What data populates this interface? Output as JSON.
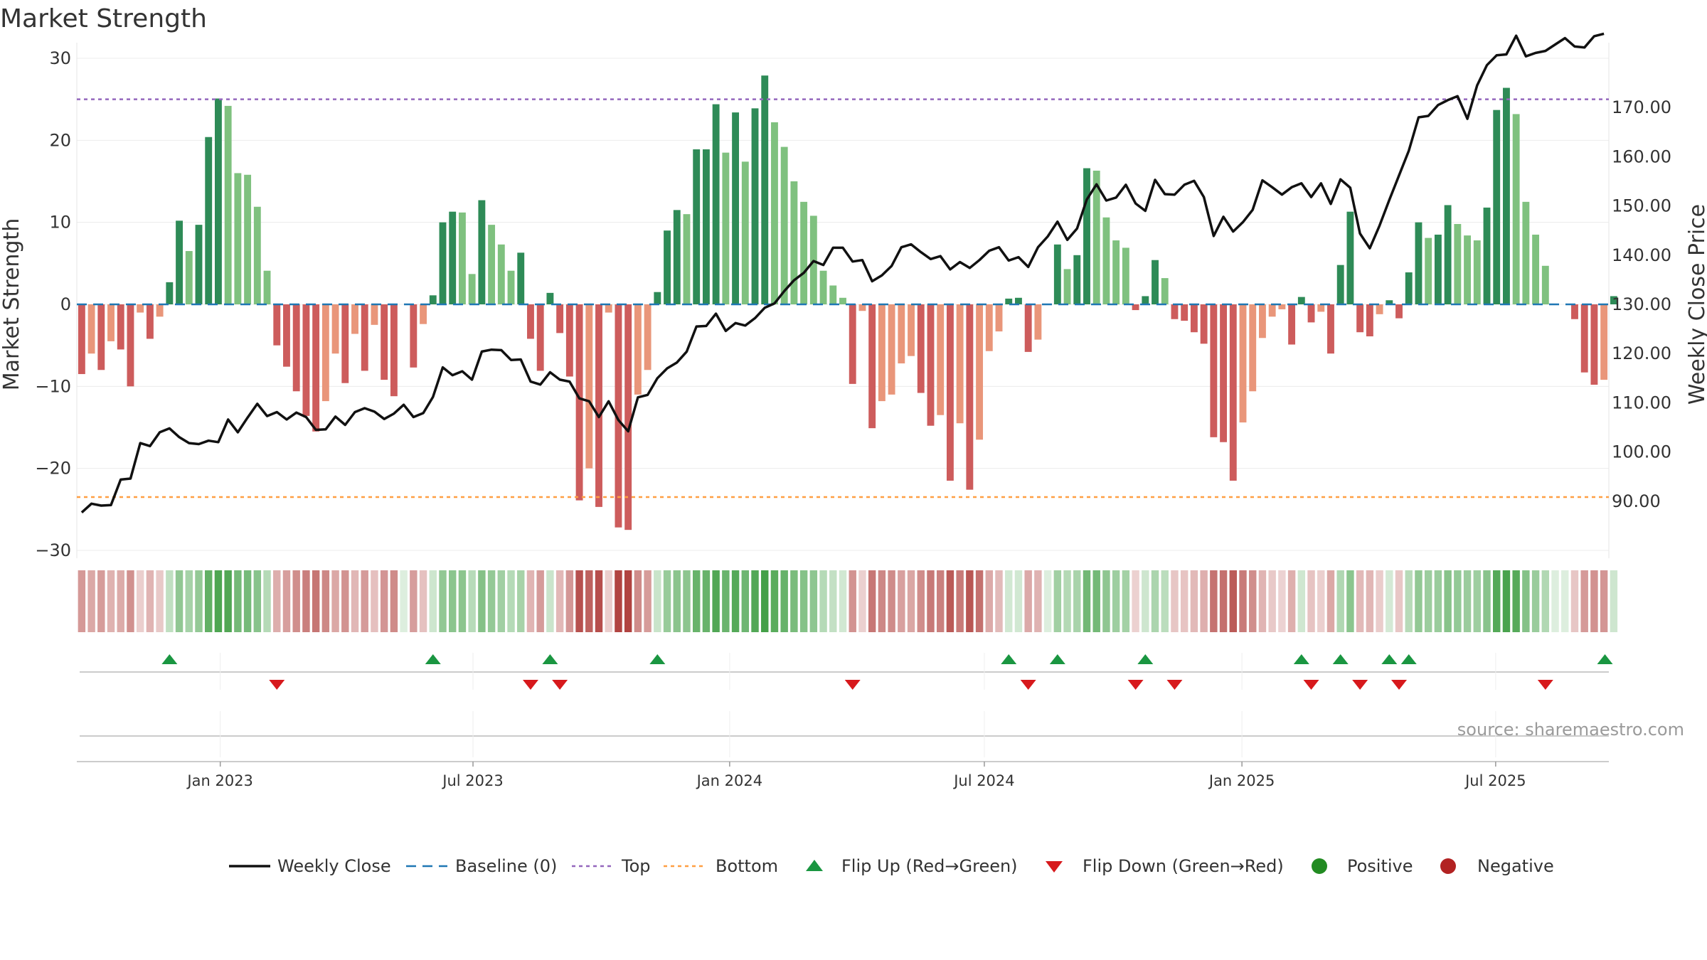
{
  "colors": {
    "pos_dark": "#2e8b57",
    "pos_light": "#7fc17f",
    "neg_dark": "#cd5c5c",
    "neg_light": "#e9967a",
    "price_line": "#111111",
    "baseline": "#1f77b4",
    "top_line": "#9467bd",
    "bottom_line": "#ff9f43",
    "flip_up": "#1a9641",
    "flip_down": "#d7191c",
    "positive_dot": "#228b22",
    "negative_dot": "#b22222",
    "source": "#9a9a9a"
  },
  "chart_data": {
    "type": "bar",
    "title": "Market Strength",
    "ylabel_left": "Market Strength",
    "ylabel_right": "Weekly Close Price",
    "source": "source: sharemaestro.com",
    "ylim_left": [
      -30,
      30
    ],
    "yticks_left": [
      30,
      20,
      10,
      0,
      -10,
      -20,
      -30
    ],
    "ytick_labels_left": [
      "30",
      "20",
      "10",
      "0",
      "−10",
      "−20",
      "−30"
    ],
    "ylim_right": [
      80,
      180
    ],
    "yticks_right": [
      90,
      100,
      110,
      120,
      130,
      140,
      150,
      160,
      170
    ],
    "ytick_labels_right": [
      "90.00",
      "100.00",
      "110.00",
      "120.00",
      "130.00",
      "140.00",
      "150.00",
      "160.00",
      "170.00"
    ],
    "xlim_weeks": [
      0,
      157
    ],
    "date_ticks": [
      {
        "label": "Jan 2023",
        "week": 14.7
      },
      {
        "label": "Jul 2023",
        "week": 40.6
      },
      {
        "label": "Jan 2024",
        "week": 66.9
      },
      {
        "label": "Jul 2024",
        "week": 93.0
      },
      {
        "label": "Jan 2025",
        "week": 119.4
      },
      {
        "label": "Jul 2025",
        "week": 145.4
      }
    ],
    "top_level": 25,
    "bottom_level": -23.5,
    "baseline_level": 0,
    "strength": [
      -8.5,
      -6,
      -8,
      -4.5,
      -5.5,
      -10,
      -1,
      -4.2,
      -1.5,
      2.7,
      10.2,
      6.5,
      9.7,
      20.4,
      25.1,
      24.2,
      16,
      15.8,
      11.9,
      4.1,
      -5,
      -7.6,
      -10.6,
      -13.6,
      -15.5,
      -11.8,
      -6,
      -9.6,
      -3.6,
      -8.1,
      -2.5,
      -9.2,
      -11.2,
      0,
      -7.7,
      -2.4,
      1.1,
      10,
      11.3,
      11.2,
      3.7,
      12.7,
      9.7,
      7.3,
      4.1,
      6.3,
      -4.2,
      -8.1,
      1.4,
      -3.5,
      -8.8,
      -23.9,
      -20,
      -24.7,
      -1,
      -27.2,
      -27.5,
      -11,
      -8,
      1.5,
      9,
      11.5,
      11,
      18.9,
      18.9,
      24.4,
      18.5,
      23.4,
      17.4,
      23.9,
      27.9,
      22.2,
      19.2,
      15,
      12.5,
      10.8,
      4.1,
      2.3,
      0.8,
      -9.7,
      -0.8,
      -15.1,
      -11.8,
      -11,
      -7.2,
      -6.3,
      -10.8,
      -14.8,
      -13.5,
      -21.5,
      -14.5,
      -22.6,
      -16.5,
      -5.7,
      -3.3,
      0.7,
      0.8,
      -5.8,
      -4.3,
      0,
      7.3,
      4.3,
      6,
      16.6,
      16.3,
      10.6,
      7.8,
      6.9,
      -0.7,
      1,
      5.4,
      3.2,
      -1.8,
      -2,
      -3.4,
      -4.8,
      -16.2,
      -16.8,
      -21.5,
      -14.4,
      -10.6,
      -4.1,
      -1.5,
      -0.6,
      -4.9,
      0.9,
      -2.2,
      -0.9,
      -6,
      4.8,
      11.3,
      -3.4,
      -3.9,
      -1.2,
      0.5,
      -1.7,
      3.9,
      10,
      8.1,
      8.5,
      12.1,
      9.8,
      8.4,
      7.8,
      11.8,
      23.7,
      26.4,
      23.2,
      12.5,
      8.5,
      4.7,
      0,
      0,
      -1.8,
      -8.3,
      -9.8,
      -9.2,
      1
    ],
    "weekly_close": [
      87.7,
      89.5,
      89.1,
      89.2,
      94.4,
      94.6,
      101.8,
      101.2,
      104,
      104.8,
      103,
      101.8,
      101.6,
      102.3,
      102,
      106.6,
      104,
      107,
      109.8,
      107.3,
      108.1,
      106.6,
      108,
      107.1,
      104.5,
      104.6,
      107.2,
      105.5,
      108.1,
      108.9,
      108.2,
      106.7,
      107.8,
      109.6,
      107.1,
      107.9,
      111.2,
      117.2,
      115.6,
      116.4,
      114.7,
      120.4,
      120.8,
      120.7,
      118.7,
      118.8,
      114.3,
      113.7,
      116.2,
      114.7,
      114.3,
      110.9,
      110.3,
      107.1,
      110.3,
      106.5,
      104.2,
      111.1,
      111.6,
      115,
      117,
      118.2,
      120.4,
      125.5,
      125.6,
      128.1,
      124.6,
      126.2,
      125.7,
      127.2,
      129.3,
      130.2,
      132.7,
      134.9,
      136.4,
      138.8,
      138,
      141.5,
      141.5,
      138.7,
      139,
      134.7,
      135.9,
      137.8,
      141.6,
      142.2,
      140.6,
      139.2,
      139.8,
      137.1,
      138.6,
      137.4,
      139,
      140.9,
      141.6,
      138.9,
      139.6,
      137.6,
      141.6,
      143.8,
      146.8,
      143.1,
      145.4,
      151.3,
      154.4,
      151.1,
      151.7,
      154.3,
      150.5,
      149,
      155.3,
      152.4,
      152.3,
      154.3,
      155.1,
      151.8,
      143.9,
      147.8,
      144.8,
      146.7,
      149.2,
      155.2,
      153.8,
      152.3,
      153.8,
      154.6,
      151.8,
      154.6,
      150.4,
      155.4,
      153.7,
      144.4,
      141.4,
      146,
      151.2,
      156.2,
      161.2,
      168,
      168.3,
      170.5,
      171.5,
      172.3,
      167.7,
      174.5,
      178.6,
      180.6,
      180.8,
      184.6,
      180.4,
      181.1,
      181.5,
      182.8,
      184.1,
      182.4,
      182.2,
      184.5,
      185
    ],
    "flip_up_weeks": [
      9.5,
      36.5,
      48.5,
      59.5,
      95.5,
      100.5,
      109.5,
      125.5,
      129.5,
      134.5,
      136.5,
      156.6
    ],
    "flip_down_weeks": [
      20.5,
      46.5,
      49.5,
      79.5,
      97.5,
      108.5,
      112.5,
      126.5,
      131.5,
      135.5,
      150.5
    ],
    "series": [
      {
        "name": "Market Strength",
        "type": "bar"
      },
      {
        "name": "Weekly Close",
        "type": "line"
      }
    ]
  },
  "legend": {
    "items": [
      {
        "label": "Weekly Close",
        "marker": "solid-line"
      },
      {
        "label": "Baseline (0)",
        "marker": "dashed-line"
      },
      {
        "label": "Top",
        "marker": "dotted-line"
      },
      {
        "label": "Bottom",
        "marker": "dotted-line"
      },
      {
        "label": "Flip Up (Red→Green)",
        "marker": "triangle-up"
      },
      {
        "label": "Flip Down (Green→Red)",
        "marker": "triangle-down"
      },
      {
        "label": "Positive",
        "marker": "dot"
      },
      {
        "label": "Negative",
        "marker": "dot"
      }
    ]
  }
}
